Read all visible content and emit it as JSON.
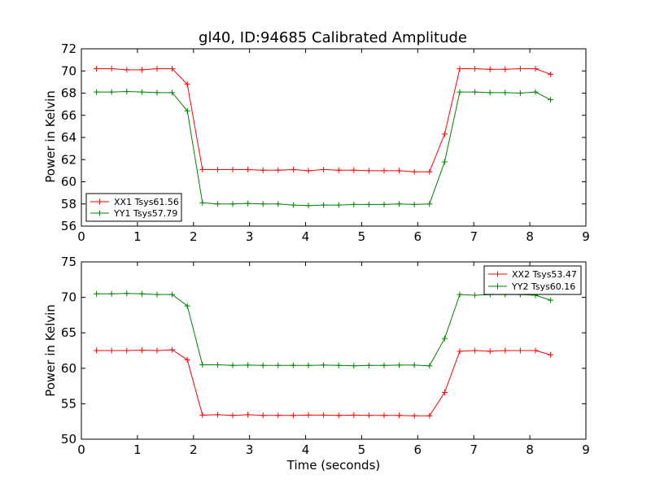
{
  "chart_data": [
    {
      "type": "line",
      "title": "gl40, ID:94685 Calibrated Amplitude",
      "xlabel": "",
      "ylabel": "Power in Kelvin",
      "xlim": [
        0,
        9
      ],
      "ylim": [
        56,
        72
      ],
      "xticks": [
        0,
        1,
        2,
        3,
        4,
        5,
        6,
        7,
        8,
        9
      ],
      "yticks": [
        56,
        58,
        60,
        62,
        64,
        66,
        68,
        70,
        72
      ],
      "legend_position": "lower-left",
      "grid": false,
      "x": [
        0.27,
        0.54,
        0.81,
        1.08,
        1.35,
        1.62,
        1.89,
        2.16,
        2.43,
        2.7,
        2.97,
        3.24,
        3.51,
        3.78,
        4.05,
        4.32,
        4.59,
        4.86,
        5.13,
        5.4,
        5.67,
        5.94,
        6.21,
        6.48,
        6.75,
        7.02,
        7.29,
        7.56,
        7.83,
        8.1,
        8.37
      ],
      "series": [
        {
          "name": "XX1 Tsys61.56",
          "color": "#ff0000",
          "values": [
            70.2,
            70.2,
            70.1,
            70.1,
            70.2,
            70.2,
            68.8,
            61.1,
            61.1,
            61.1,
            61.1,
            61.05,
            61.05,
            61.1,
            61.0,
            61.1,
            61.05,
            61.05,
            61.0,
            61.0,
            61.0,
            60.9,
            60.9,
            64.3,
            70.2,
            70.2,
            70.15,
            70.15,
            70.2,
            70.2,
            69.7
          ]
        },
        {
          "name": "YY1 Tsys57.79",
          "color": "#008000",
          "values": [
            68.1,
            68.1,
            68.15,
            68.1,
            68.05,
            68.05,
            66.4,
            58.1,
            58.0,
            58.0,
            58.05,
            58.0,
            58.0,
            57.9,
            57.85,
            57.9,
            57.9,
            57.95,
            57.95,
            57.95,
            58.0,
            57.95,
            58.0,
            61.8,
            68.1,
            68.1,
            68.05,
            68.05,
            68.0,
            68.1,
            67.4
          ]
        }
      ]
    },
    {
      "type": "line",
      "title": "",
      "xlabel": "Time (seconds)",
      "ylabel": "Power in Kelvin",
      "xlim": [
        0,
        9
      ],
      "ylim": [
        50,
        75
      ],
      "xticks": [
        0,
        1,
        2,
        3,
        4,
        5,
        6,
        7,
        8,
        9
      ],
      "yticks": [
        50,
        55,
        60,
        65,
        70,
        75
      ],
      "legend_position": "top-right",
      "grid": false,
      "x": [
        0.27,
        0.54,
        0.81,
        1.08,
        1.35,
        1.62,
        1.89,
        2.16,
        2.43,
        2.7,
        2.97,
        3.24,
        3.51,
        3.78,
        4.05,
        4.32,
        4.59,
        4.86,
        5.13,
        5.4,
        5.67,
        5.94,
        6.21,
        6.48,
        6.75,
        7.02,
        7.29,
        7.56,
        7.83,
        8.1,
        8.37
      ],
      "series": [
        {
          "name": "XX2 Tsys53.47",
          "color": "#ff0000",
          "values": [
            62.5,
            62.5,
            62.5,
            62.55,
            62.5,
            62.6,
            61.2,
            53.4,
            53.45,
            53.35,
            53.45,
            53.35,
            53.35,
            53.35,
            53.4,
            53.4,
            53.35,
            53.4,
            53.35,
            53.35,
            53.35,
            53.3,
            53.3,
            56.6,
            62.4,
            62.5,
            62.4,
            62.5,
            62.5,
            62.5,
            61.9
          ]
        },
        {
          "name": "YY2 Tsys60.16",
          "color": "#008000",
          "values": [
            70.5,
            70.5,
            70.55,
            70.5,
            70.4,
            70.4,
            68.8,
            60.5,
            60.5,
            60.4,
            60.45,
            60.4,
            60.4,
            60.4,
            60.4,
            60.45,
            60.4,
            60.35,
            60.4,
            60.4,
            60.45,
            60.45,
            60.35,
            64.2,
            70.4,
            70.3,
            70.4,
            70.4,
            70.4,
            70.3,
            69.6
          ]
        }
      ]
    }
  ]
}
